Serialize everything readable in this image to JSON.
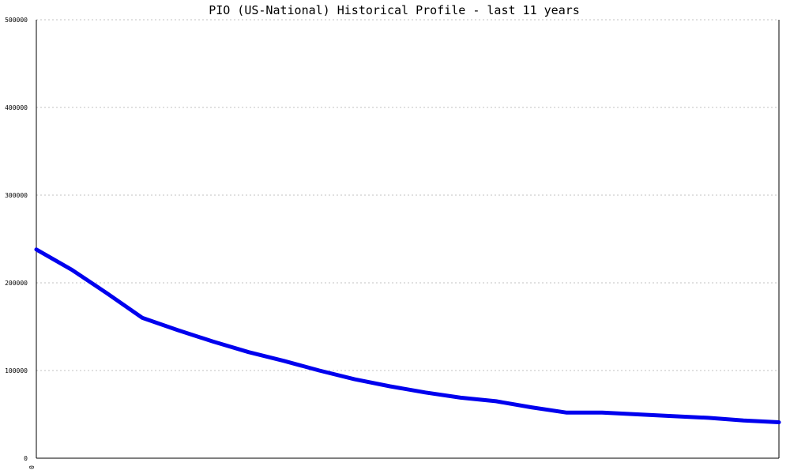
{
  "chart_data": {
    "type": "line",
    "title": "PIO (US-National) Historical Profile - last 11 years",
    "xlabel": "",
    "ylabel": "",
    "x_tick_labels": [
      "0"
    ],
    "ylim": [
      0,
      500000
    ],
    "y_ticks": [
      0,
      100000,
      200000,
      300000,
      400000,
      500000
    ],
    "y_tick_labels": [
      "0",
      "100000",
      "200000",
      "300000",
      "400000",
      "500000"
    ],
    "grid": true,
    "legend": "none",
    "colors": {
      "line": "#0000ee",
      "grid": "#c0c0c0"
    },
    "series": [
      {
        "values": [
          238000,
          215000,
          188000,
          160000,
          146000,
          133000,
          121000,
          111000,
          100000,
          90000,
          82000,
          75000,
          69000,
          65000,
          58000,
          52000,
          52000,
          50000,
          48000,
          46000,
          43000,
          41000
        ]
      }
    ]
  }
}
